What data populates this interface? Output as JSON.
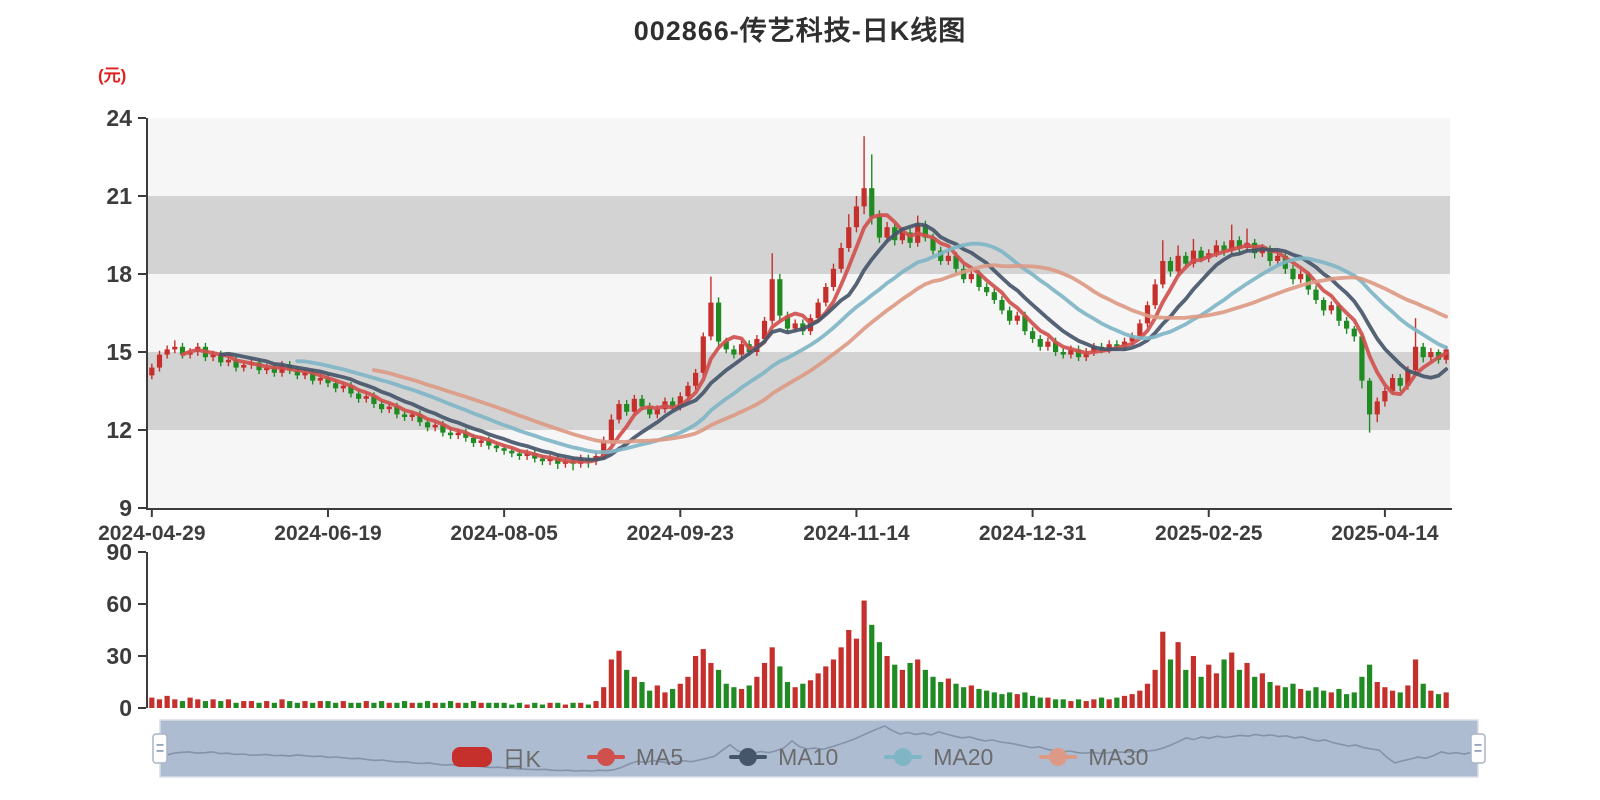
{
  "title": "002866-传艺科技-日K线图",
  "unit_label": "(元)",
  "colors": {
    "up": "#c5302c",
    "down": "#1f8b22",
    "ma5": "#d0504e",
    "ma10": "#46566a",
    "ma20": "#7fb5c5",
    "ma30": "#dc9a86",
    "axis": "#3c3c3c",
    "unit_label": "#e01f1f",
    "band_light": "#f6f6f6",
    "band_gray": "#d3d3d3",
    "slider_fill": "#aebcd2",
    "slider_line": "#8493a9",
    "slider_border": "#d8dde7",
    "handle_fill": "#fdfdfd",
    "handle_border": "#a9b4c6",
    "legend_text": "#6b6b6b",
    "title_text": "#2f2f2f"
  },
  "legend": [
    {
      "label": "日K",
      "type": "candle",
      "color": "#c5302c"
    },
    {
      "label": "MA5",
      "type": "line",
      "color": "#d0504e"
    },
    {
      "label": "MA10",
      "type": "line",
      "color": "#46566a"
    },
    {
      "label": "MA20",
      "type": "line",
      "color": "#7fb5c5"
    },
    {
      "label": "MA30",
      "type": "line",
      "color": "#dc9a86"
    }
  ],
  "chart_data": {
    "type": "candlestick",
    "title": "002866-传艺科技-日K线图",
    "ylabel": "(元)",
    "ylim": [
      9,
      24
    ],
    "y_ticks": [
      24,
      21,
      18,
      15,
      12,
      9
    ],
    "volume_ylim": [
      0,
      90
    ],
    "volume_ticks": [
      90,
      60,
      30,
      0
    ],
    "x_tick_labels": [
      "2024-04-29",
      "2024-06-19",
      "2024-08-05",
      "2024-09-23",
      "2024-11-14",
      "2024-12-31",
      "2025-02-25",
      "2025-04-14"
    ],
    "x_tick_indices": [
      0,
      23,
      46,
      69,
      92,
      115,
      138,
      161
    ],
    "ma_series": [
      {
        "name": "MA5",
        "period": 5
      },
      {
        "name": "MA10",
        "period": 10
      },
      {
        "name": "MA20",
        "period": 20
      },
      {
        "name": "MA30",
        "period": 30
      }
    ],
    "candles": [
      [
        14.1,
        14.4,
        13.95,
        14.55
      ],
      [
        14.4,
        14.9,
        14.25,
        15.05
      ],
      [
        14.9,
        15.1,
        14.75,
        15.25
      ],
      [
        15.1,
        15.2,
        14.95,
        15.45
      ],
      [
        15.2,
        14.9,
        14.75,
        15.35
      ],
      [
        14.9,
        15.0,
        14.75,
        15.15
      ],
      [
        15.0,
        15.2,
        14.85,
        15.35
      ],
      [
        15.2,
        14.8,
        14.65,
        15.35
      ],
      [
        14.8,
        14.9,
        14.65,
        15.05
      ],
      [
        14.9,
        14.6,
        14.45,
        15.05
      ],
      [
        14.6,
        14.7,
        14.45,
        14.85
      ],
      [
        14.7,
        14.4,
        14.25,
        14.85
      ],
      [
        14.4,
        14.5,
        14.25,
        14.65
      ],
      [
        14.5,
        14.6,
        14.35,
        14.75
      ],
      [
        14.6,
        14.3,
        14.15,
        14.75
      ],
      [
        14.3,
        14.4,
        14.15,
        14.55
      ],
      [
        14.4,
        14.2,
        14.05,
        14.55
      ],
      [
        14.2,
        14.5,
        14.05,
        14.65
      ],
      [
        14.5,
        14.3,
        14.15,
        14.65
      ],
      [
        14.3,
        14.1,
        13.95,
        14.45
      ],
      [
        14.1,
        14.2,
        13.95,
        14.35
      ],
      [
        14.2,
        13.9,
        13.75,
        14.35
      ],
      [
        13.9,
        14.0,
        13.75,
        14.15
      ],
      [
        14.0,
        13.8,
        13.65,
        14.15
      ],
      [
        13.8,
        13.6,
        13.45,
        13.95
      ],
      [
        13.6,
        13.7,
        13.45,
        13.85
      ],
      [
        13.7,
        13.4,
        13.25,
        13.85
      ],
      [
        13.4,
        13.2,
        13.05,
        13.55
      ],
      [
        13.2,
        13.3,
        13.05,
        13.45
      ],
      [
        13.3,
        13.0,
        12.85,
        13.45
      ],
      [
        13.0,
        12.8,
        12.65,
        13.15
      ],
      [
        12.8,
        12.9,
        12.65,
        13.05
      ],
      [
        12.9,
        12.6,
        12.45,
        13.05
      ],
      [
        12.6,
        12.5,
        12.35,
        12.75
      ],
      [
        12.5,
        12.6,
        12.35,
        12.75
      ],
      [
        12.6,
        12.3,
        12.15,
        12.75
      ],
      [
        12.3,
        12.1,
        11.95,
        12.45
      ],
      [
        12.1,
        12.2,
        11.95,
        12.35
      ],
      [
        12.2,
        11.9,
        11.75,
        12.35
      ],
      [
        11.9,
        11.8,
        11.65,
        12.05
      ],
      [
        11.8,
        11.9,
        11.65,
        12.05
      ],
      [
        11.9,
        11.7,
        11.55,
        12.05
      ],
      [
        11.7,
        11.5,
        11.35,
        11.85
      ],
      [
        11.5,
        11.6,
        11.35,
        11.75
      ],
      [
        11.6,
        11.4,
        11.25,
        11.75
      ],
      [
        11.4,
        11.3,
        11.15,
        11.55
      ],
      [
        11.3,
        11.2,
        11.05,
        11.45
      ],
      [
        11.2,
        11.1,
        10.95,
        11.35
      ],
      [
        11.1,
        11.0,
        10.85,
        11.25
      ],
      [
        11.0,
        11.1,
        10.85,
        11.25
      ],
      [
        11.1,
        10.9,
        10.75,
        11.25
      ],
      [
        10.9,
        10.8,
        10.65,
        11.05
      ],
      [
        10.8,
        10.9,
        10.65,
        11.05
      ],
      [
        10.9,
        10.7,
        10.5,
        11.05
      ],
      [
        10.7,
        10.8,
        10.55,
        10.95
      ],
      [
        10.8,
        10.7,
        10.45,
        10.95
      ],
      [
        10.7,
        10.9,
        10.55,
        11.05
      ],
      [
        10.9,
        10.8,
        10.55,
        11.05
      ],
      [
        10.8,
        11.0,
        10.65,
        11.15
      ],
      [
        11.0,
        11.6,
        10.85,
        11.75
      ],
      [
        11.6,
        12.4,
        11.45,
        12.6
      ],
      [
        12.4,
        13.0,
        12.25,
        13.15
      ],
      [
        13.0,
        12.7,
        12.55,
        13.15
      ],
      [
        12.7,
        13.2,
        12.55,
        13.35
      ],
      [
        13.2,
        12.9,
        12.75,
        13.35
      ],
      [
        12.9,
        12.6,
        12.45,
        13.05
      ],
      [
        12.6,
        12.8,
        12.45,
        12.95
      ],
      [
        12.8,
        13.1,
        12.65,
        13.25
      ],
      [
        13.1,
        12.9,
        12.75,
        13.25
      ],
      [
        12.9,
        13.3,
        12.75,
        13.45
      ],
      [
        13.3,
        13.7,
        13.15,
        13.85
      ],
      [
        13.7,
        14.2,
        13.55,
        14.35
      ],
      [
        14.2,
        15.6,
        14.05,
        15.75
      ],
      [
        15.6,
        16.9,
        15.45,
        17.9
      ],
      [
        16.9,
        15.4,
        15.2,
        17.1
      ],
      [
        15.4,
        15.1,
        14.95,
        15.55
      ],
      [
        15.1,
        14.9,
        14.75,
        15.25
      ],
      [
        14.9,
        15.3,
        14.75,
        15.45
      ],
      [
        15.3,
        15.0,
        14.85,
        15.45
      ],
      [
        15.0,
        15.5,
        14.85,
        15.65
      ],
      [
        15.5,
        16.2,
        15.35,
        16.35
      ],
      [
        16.2,
        17.8,
        16.05,
        18.8
      ],
      [
        17.8,
        16.4,
        16.2,
        18.0
      ],
      [
        16.4,
        15.9,
        15.75,
        16.55
      ],
      [
        15.9,
        16.1,
        15.75,
        16.25
      ],
      [
        16.1,
        15.8,
        15.65,
        16.25
      ],
      [
        15.8,
        16.3,
        15.65,
        16.45
      ],
      [
        16.3,
        16.9,
        16.15,
        17.05
      ],
      [
        16.9,
        17.5,
        16.75,
        17.65
      ],
      [
        17.5,
        18.2,
        17.35,
        18.4
      ],
      [
        18.2,
        19.0,
        18.05,
        19.2
      ],
      [
        19.0,
        19.8,
        18.85,
        20.3
      ],
      [
        19.8,
        20.6,
        19.6,
        21.0
      ],
      [
        20.6,
        21.3,
        20.3,
        23.3
      ],
      [
        21.3,
        20.2,
        19.9,
        22.6
      ],
      [
        20.2,
        19.4,
        19.2,
        20.45
      ],
      [
        19.4,
        19.8,
        19.25,
        20.0
      ],
      [
        19.8,
        19.3,
        19.1,
        19.95
      ],
      [
        19.3,
        19.6,
        19.15,
        19.8
      ],
      [
        19.6,
        19.2,
        19.0,
        19.75
      ],
      [
        19.2,
        19.9,
        19.05,
        20.25
      ],
      [
        19.9,
        19.4,
        19.25,
        20.05
      ],
      [
        19.4,
        18.9,
        18.75,
        19.55
      ],
      [
        18.9,
        18.5,
        18.35,
        19.05
      ],
      [
        18.5,
        18.7,
        18.35,
        18.9
      ],
      [
        18.7,
        18.2,
        18.05,
        18.85
      ],
      [
        18.2,
        17.8,
        17.65,
        18.35
      ],
      [
        17.8,
        18.0,
        17.65,
        18.15
      ],
      [
        18.0,
        17.5,
        17.35,
        18.15
      ],
      [
        17.5,
        17.3,
        17.15,
        17.65
      ],
      [
        17.3,
        17.0,
        16.85,
        17.45
      ],
      [
        17.0,
        16.6,
        16.45,
        17.15
      ],
      [
        16.6,
        16.2,
        16.05,
        16.75
      ],
      [
        16.2,
        16.4,
        16.05,
        16.55
      ],
      [
        16.4,
        15.8,
        15.65,
        16.55
      ],
      [
        15.8,
        15.5,
        15.35,
        15.95
      ],
      [
        15.5,
        15.2,
        15.05,
        15.65
      ],
      [
        15.2,
        15.4,
        15.05,
        15.55
      ],
      [
        15.4,
        15.0,
        14.85,
        15.55
      ],
      [
        15.0,
        14.9,
        14.75,
        15.15
      ],
      [
        14.9,
        15.1,
        14.75,
        15.25
      ],
      [
        15.1,
        14.8,
        14.65,
        15.25
      ],
      [
        14.8,
        15.0,
        14.65,
        15.15
      ],
      [
        15.0,
        15.2,
        14.85,
        15.35
      ],
      [
        15.2,
        15.1,
        14.95,
        15.35
      ],
      [
        15.1,
        15.3,
        14.95,
        15.45
      ],
      [
        15.3,
        15.2,
        15.05,
        15.45
      ],
      [
        15.2,
        15.4,
        15.05,
        15.55
      ],
      [
        15.4,
        15.6,
        15.25,
        15.75
      ],
      [
        15.6,
        16.1,
        15.45,
        16.25
      ],
      [
        16.1,
        16.8,
        15.95,
        16.95
      ],
      [
        16.8,
        17.6,
        16.65,
        17.8
      ],
      [
        17.6,
        18.5,
        17.45,
        19.3
      ],
      [
        18.5,
        18.1,
        17.9,
        18.65
      ],
      [
        18.1,
        18.7,
        17.95,
        19.1
      ],
      [
        18.7,
        18.4,
        18.25,
        18.85
      ],
      [
        18.4,
        18.9,
        18.25,
        19.35
      ],
      [
        18.9,
        18.6,
        18.45,
        19.05
      ],
      [
        18.6,
        18.8,
        18.45,
        18.95
      ],
      [
        18.8,
        19.1,
        18.65,
        19.3
      ],
      [
        19.1,
        18.9,
        18.7,
        19.25
      ],
      [
        18.9,
        19.3,
        18.75,
        19.9
      ],
      [
        19.3,
        19.0,
        18.8,
        19.45
      ],
      [
        19.0,
        19.2,
        18.85,
        19.75
      ],
      [
        19.2,
        18.8,
        18.6,
        19.35
      ],
      [
        18.8,
        19.0,
        18.65,
        19.15
      ],
      [
        19.0,
        18.5,
        18.3,
        19.1
      ],
      [
        18.5,
        18.7,
        18.35,
        18.85
      ],
      [
        18.7,
        18.2,
        18.0,
        18.8
      ],
      [
        18.2,
        17.8,
        17.6,
        18.35
      ],
      [
        17.8,
        18.0,
        17.65,
        18.15
      ],
      [
        18.0,
        17.4,
        17.2,
        18.1
      ],
      [
        17.4,
        17.0,
        16.85,
        17.55
      ],
      [
        17.0,
        16.6,
        16.4,
        17.1
      ],
      [
        16.6,
        16.8,
        16.45,
        16.95
      ],
      [
        16.8,
        16.2,
        16.0,
        16.9
      ],
      [
        16.2,
        15.9,
        15.7,
        16.35
      ],
      [
        15.9,
        15.6,
        15.4,
        16.0
      ],
      [
        15.6,
        13.9,
        13.6,
        15.7
      ],
      [
        13.9,
        12.6,
        11.9,
        14.0
      ],
      [
        12.6,
        13.1,
        12.3,
        13.25
      ],
      [
        13.1,
        13.5,
        12.9,
        13.65
      ],
      [
        13.5,
        14.0,
        13.35,
        14.15
      ],
      [
        14.0,
        13.7,
        13.5,
        14.15
      ],
      [
        13.7,
        14.3,
        13.55,
        14.45
      ],
      [
        14.3,
        15.2,
        14.15,
        16.3
      ],
      [
        15.2,
        14.8,
        14.6,
        15.35
      ],
      [
        14.8,
        15.0,
        14.65,
        15.15
      ],
      [
        15.0,
        14.7,
        14.55,
        15.1
      ],
      [
        14.7,
        15.1,
        14.55,
        15.25
      ]
    ],
    "volumes": [
      6,
      5,
      7,
      5,
      4,
      6,
      5,
      4,
      5,
      4,
      5,
      3,
      4,
      4,
      3,
      4,
      3,
      5,
      4,
      3,
      4,
      3,
      4,
      4,
      3,
      4,
      3,
      3,
      4,
      3,
      4,
      3,
      3,
      4,
      3,
      3,
      4,
      3,
      3,
      4,
      3,
      3,
      4,
      3,
      3,
      3,
      3,
      2,
      3,
      2,
      3,
      2,
      3,
      3,
      2,
      3,
      3,
      2,
      4,
      12,
      28,
      33,
      22,
      18,
      15,
      10,
      13,
      9,
      11,
      14,
      18,
      30,
      34,
      26,
      22,
      14,
      12,
      11,
      13,
      18,
      26,
      35,
      24,
      15,
      12,
      14,
      16,
      20,
      24,
      28,
      35,
      45,
      40,
      62,
      48,
      38,
      30,
      25,
      22,
      26,
      28,
      22,
      18,
      15,
      17,
      14,
      12,
      13,
      11,
      10,
      9,
      8,
      9,
      8,
      9,
      7,
      6,
      6,
      5,
      5,
      4,
      5,
      4,
      5,
      6,
      5,
      6,
      7,
      8,
      10,
      14,
      22,
      44,
      28,
      38,
      22,
      30,
      18,
      25,
      20,
      28,
      32,
      22,
      26,
      18,
      20,
      15,
      13,
      12,
      14,
      11,
      10,
      12,
      10,
      9,
      11,
      8,
      9,
      18,
      25,
      15,
      12,
      10,
      9,
      13,
      28,
      14,
      10,
      8,
      9
    ]
  }
}
